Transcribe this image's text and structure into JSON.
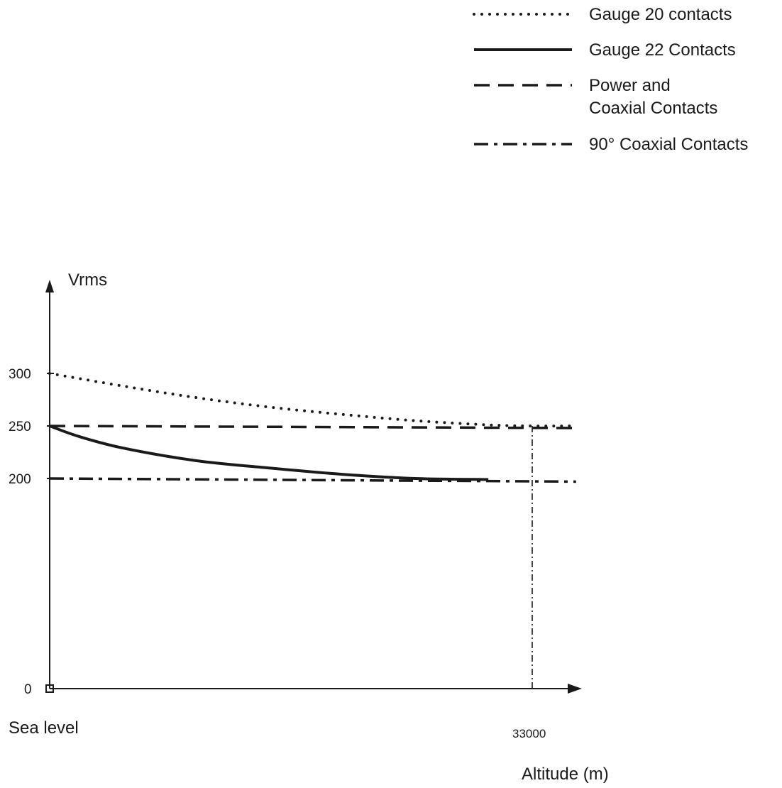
{
  "chart_data": {
    "type": "line",
    "title": "",
    "ylabel": "Vrms",
    "xlabel": "Altitude (m)",
    "x_origin_label": "Sea level",
    "x_ticks": [
      33000
    ],
    "x_tick_labels": [
      "33000"
    ],
    "y_ticks": [
      0,
      200,
      250,
      300
    ],
    "y_tick_labels": [
      "0",
      "200",
      "250",
      "300"
    ],
    "xlim": [
      0,
      38000
    ],
    "ylim": [
      0,
      340
    ],
    "grid": false,
    "legend_position": "top-right",
    "series": [
      {
        "name": "Gauge 20 contacts",
        "style": "dotted",
        "x": [
          0,
          5000,
          10000,
          15000,
          20000,
          25000,
          30000,
          33000,
          36000
        ],
        "y": [
          300,
          288,
          277,
          268,
          261,
          255,
          251,
          250,
          250
        ]
      },
      {
        "name": "Gauge 22 Contacts",
        "style": "solid",
        "x": [
          0,
          2000,
          5000,
          10000,
          15000,
          20000,
          25000,
          30000
        ],
        "y": [
          250,
          240,
          229,
          217,
          210,
          204,
          200,
          199
        ]
      },
      {
        "name": "Power and Coaxial Contacts",
        "style": "dashed",
        "x": [
          0,
          36000
        ],
        "y": [
          250,
          248
        ]
      },
      {
        "name": "90° Coaxial Contacts",
        "style": "dashdot",
        "x": [
          0,
          36000
        ],
        "y": [
          200,
          197
        ]
      }
    ],
    "reference_lines": [
      {
        "style": "dashdot-thin",
        "x": [
          33000,
          33000
        ],
        "y": [
          0,
          250
        ]
      }
    ]
  },
  "legend": {
    "items": [
      {
        "style": "dotted",
        "lines": [
          "Gauge 20 contacts"
        ]
      },
      {
        "style": "solid",
        "lines": [
          "Gauge 22 Contacts"
        ]
      },
      {
        "style": "dashed",
        "lines": [
          "Power and",
          "Coaxial Contacts"
        ]
      },
      {
        "style": "dashdot",
        "lines": [
          "90° Coaxial Contacts"
        ]
      }
    ]
  },
  "colors": {
    "ink": "#1a1a1a",
    "background": "#ffffff"
  }
}
